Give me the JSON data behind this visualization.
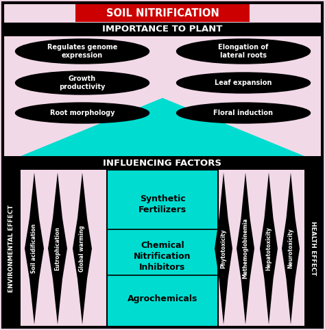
{
  "title": "SOIL NITRIFICATION",
  "subtitle": "IMPORTANCE TO PLANT",
  "influencing_title": "INFLUENCING FACTORS",
  "plant_items_left": [
    "Regulates genome\nexpression",
    "Growth\nproductivity",
    "Root morphology"
  ],
  "plant_items_right": [
    "Elongation of\nlateral roots",
    "Leaf expansion",
    "Floral induction"
  ],
  "env_label": "ENVIRONMENTAL EFFECT",
  "health_label": "HEALTH EFFECT",
  "env_factors": [
    "Soil acidification",
    "Eutrophication",
    "Global warming"
  ],
  "health_factors": [
    "Phytotoxicity",
    "Methemoglobinemia",
    "Hepatotoxicity",
    "Neurotoxicity"
  ],
  "center_items": [
    "Synthetic\nFertilizers",
    "Chemical\nNitrification\nInhibitors",
    "Agrochemicals"
  ],
  "bg_pink": "#f2d9e8",
  "bg_cyan": "#00ddd0",
  "title_bg": "#cc0000",
  "title_fg": "#ffffff",
  "figw": 4.74,
  "figh": 4.82,
  "dpi": 100
}
